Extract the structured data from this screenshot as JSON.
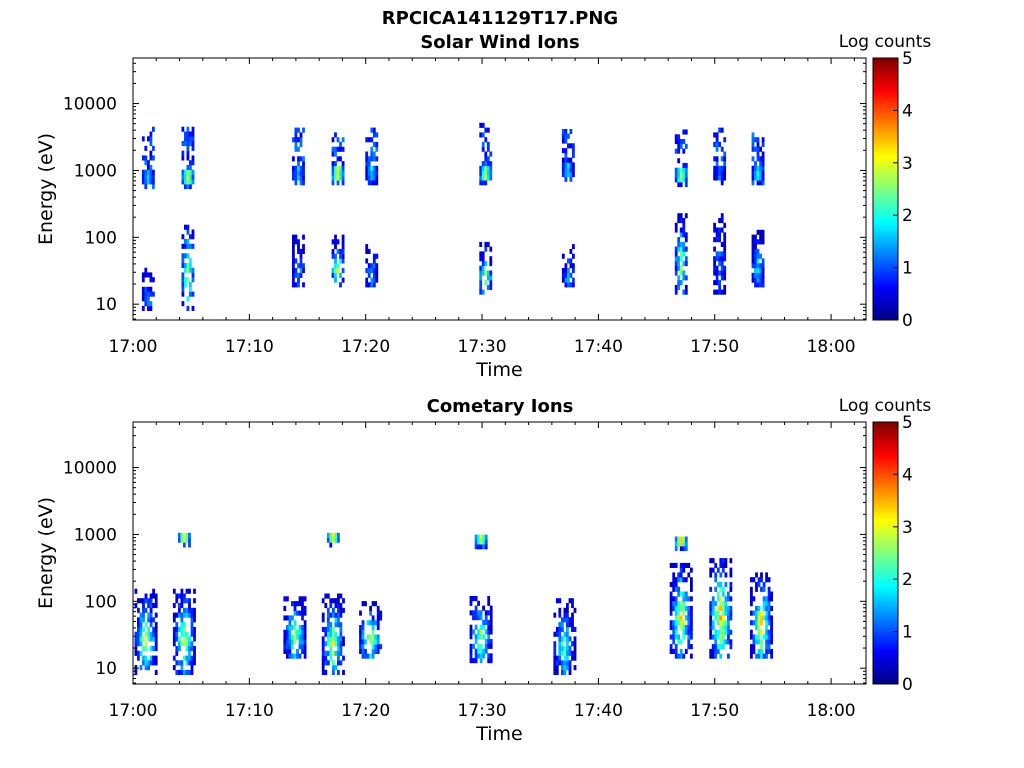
{
  "figure": {
    "title": "RPCICA141129T17.PNG"
  },
  "chart_data": [
    {
      "type": "heatmap",
      "title": "Solar Wind Ions",
      "xlabel": "Time",
      "ylabel": "Energy (eV)",
      "y_scale": "log",
      "ylim": [
        5.8,
        48000
      ],
      "x_range": [
        "17:00",
        "18:03"
      ],
      "x_ticks": [
        "17:00",
        "17:10",
        "17:20",
        "17:30",
        "17:40",
        "17:50",
        "18:00"
      ],
      "y_ticks": [
        "10",
        "100",
        "1000",
        "10000"
      ],
      "colorbar": {
        "label": "Log counts",
        "min": 0,
        "max": 5,
        "ticks": [
          "0",
          "1",
          "2",
          "3",
          "4",
          "5"
        ],
        "colormap": "jet"
      },
      "bursts": [
        {
          "time_min": 1.2,
          "energy_eV": [
            8,
            30,
            700,
            4000
          ],
          "peak_log_counts": 1.5
        },
        {
          "time_min": 4.6,
          "energy_eV": [
            8,
            150,
            700,
            4000
          ],
          "peak_log_counts": 2.8
        },
        {
          "time_min": 14.1,
          "energy_eV": [
            18,
            100,
            800,
            4000
          ],
          "peak_log_counts": 1.6
        },
        {
          "time_min": 17.5,
          "energy_eV": [
            18,
            100,
            800,
            4000
          ],
          "peak_log_counts": 2.9
        },
        {
          "time_min": 20.4,
          "energy_eV": [
            18,
            80,
            800,
            4000
          ],
          "peak_log_counts": 1.7
        },
        {
          "time_min": 30.2,
          "energy_eV": [
            14,
            80,
            800,
            4500
          ],
          "peak_log_counts": 2.7
        },
        {
          "time_min": 37.3,
          "energy_eV": [
            18,
            70,
            900,
            4000
          ],
          "peak_log_counts": 1.6
        },
        {
          "time_min": 47.0,
          "energy_eV": [
            14,
            200,
            750,
            4000
          ],
          "peak_log_counts": 2.6
        },
        {
          "time_min": 50.3,
          "energy_eV": [
            14,
            200,
            800,
            4000
          ],
          "peak_log_counts": 1.2
        },
        {
          "time_min": 53.6,
          "energy_eV": [
            18,
            110,
            800,
            3500
          ],
          "peak_log_counts": 1.8
        }
      ]
    },
    {
      "type": "heatmap",
      "title": "Cometary Ions",
      "xlabel": "Time",
      "ylabel": "Energy (eV)",
      "y_scale": "log",
      "ylim": [
        5.8,
        48000
      ],
      "x_range": [
        "17:00",
        "18:03"
      ],
      "x_ticks": [
        "17:00",
        "17:10",
        "17:20",
        "17:30",
        "17:40",
        "17:50",
        "18:00"
      ],
      "y_ticks": [
        "10",
        "100",
        "1000",
        "10000"
      ],
      "colorbar": {
        "label": "Log counts",
        "min": 0,
        "max": 5,
        "ticks": [
          "0",
          "1",
          "2",
          "3",
          "4",
          "5"
        ],
        "colormap": "jet"
      },
      "bursts": [
        {
          "time_min": 1.0,
          "energy_eV": [
            8,
            140
          ],
          "peak_log_counts": 3.0
        },
        {
          "time_min": 4.3,
          "energy_eV": [
            8,
            150,
            850
          ],
          "peak_log_counts": 3.0
        },
        {
          "time_min": 13.8,
          "energy_eV": [
            14,
            110
          ],
          "peak_log_counts": 2.8
        },
        {
          "time_min": 17.1,
          "energy_eV": [
            8,
            120,
            850
          ],
          "peak_log_counts": 3.0
        },
        {
          "time_min": 20.3,
          "energy_eV": [
            14,
            90
          ],
          "peak_log_counts": 3.1
        },
        {
          "time_min": 29.8,
          "energy_eV": [
            12,
            110,
            800
          ],
          "peak_log_counts": 2.9
        },
        {
          "time_min": 37.0,
          "energy_eV": [
            8,
            100
          ],
          "peak_log_counts": 2.5
        },
        {
          "time_min": 47.0,
          "energy_eV": [
            14,
            350,
            750
          ],
          "peak_log_counts": 3.3
        },
        {
          "time_min": 50.4,
          "energy_eV": [
            14,
            420
          ],
          "peak_log_counts": 3.6
        },
        {
          "time_min": 53.9,
          "energy_eV": [
            14,
            230
          ],
          "peak_log_counts": 3.5
        }
      ]
    }
  ]
}
